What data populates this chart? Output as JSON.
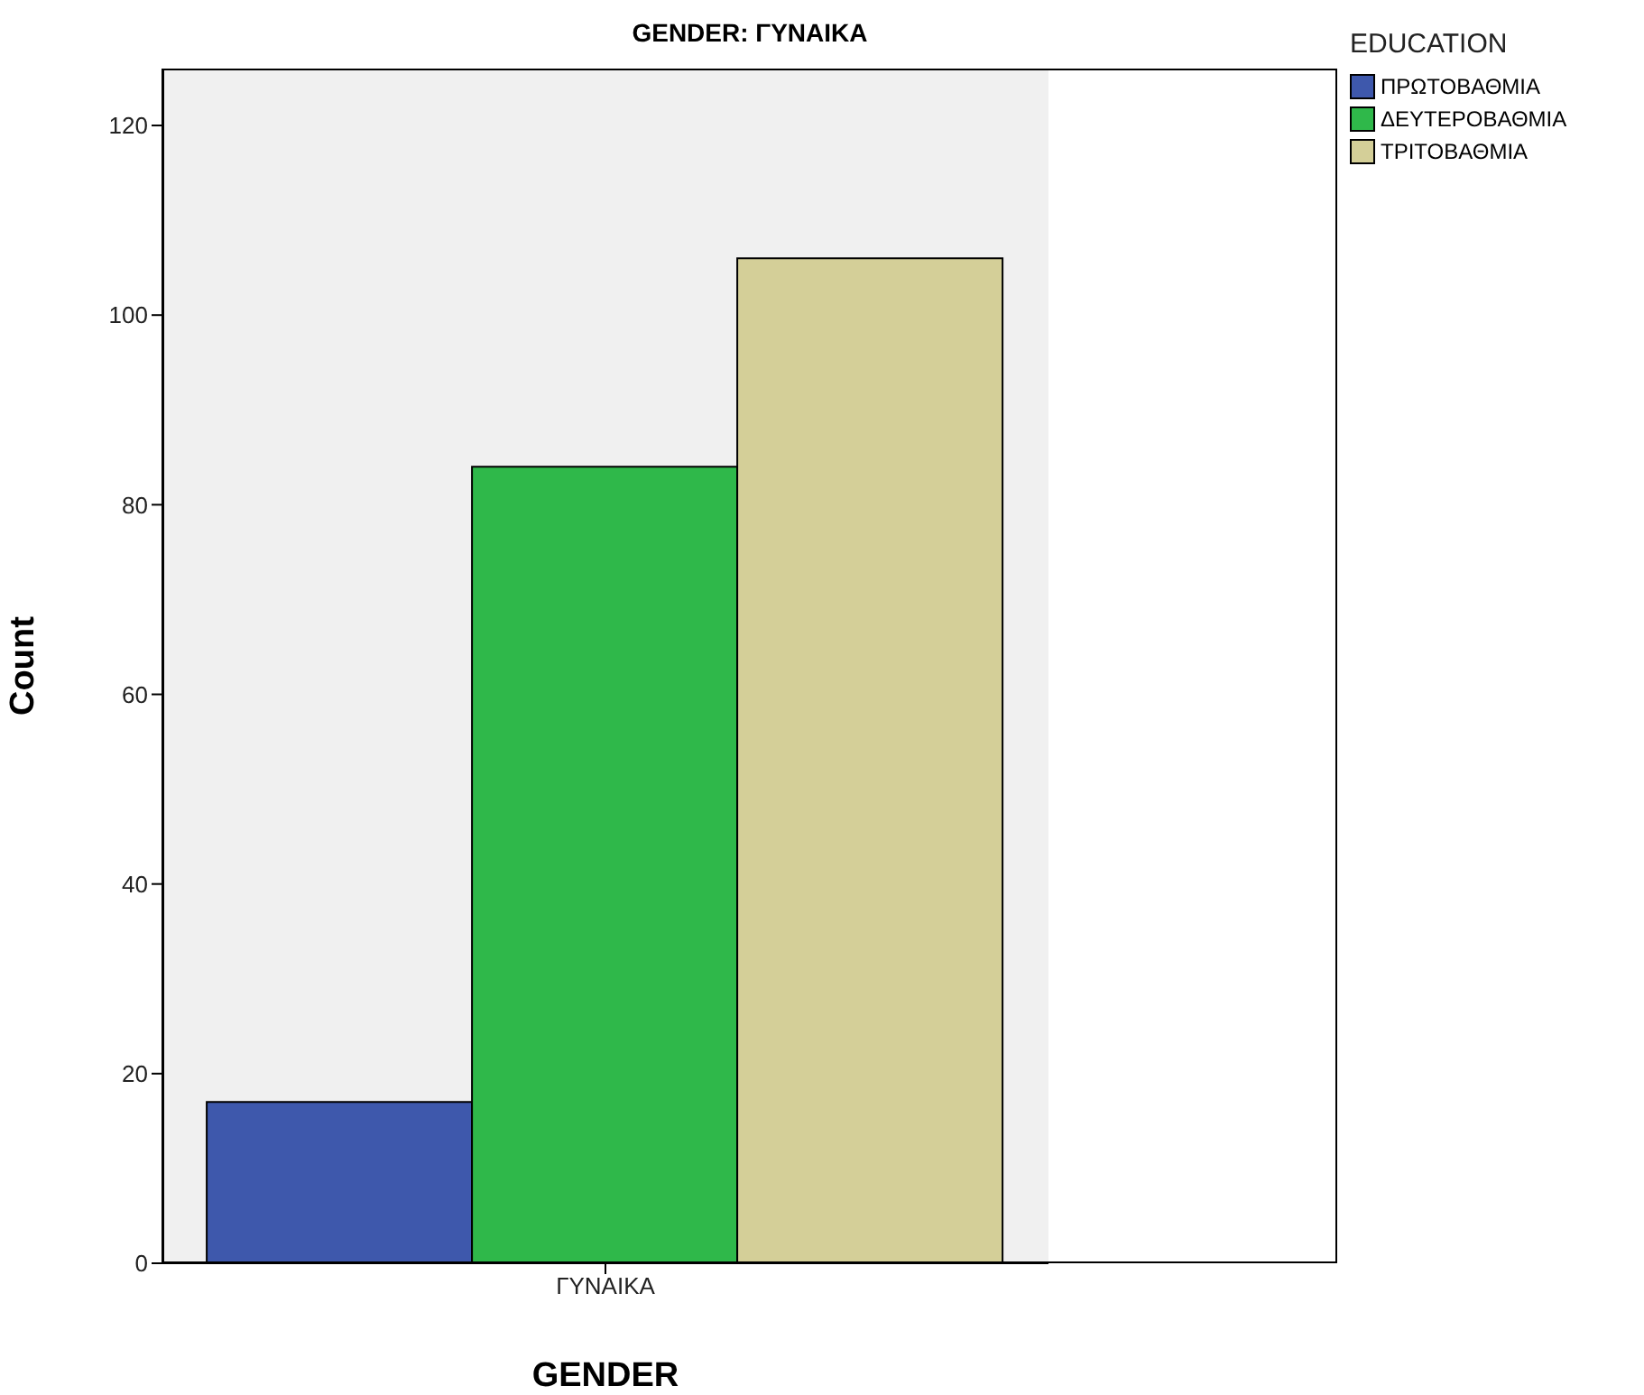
{
  "chart_data": {
    "type": "bar",
    "title": "GENDER: ΓΥΝΑΙΚΑ",
    "xlabel": "GENDER",
    "ylabel": "Count",
    "legend_title": "EDUCATION",
    "categories": [
      "ΓΥΝΑΙΚΑ"
    ],
    "series": [
      {
        "name": "ΠΡΩΤΟΒΑΘΜΙΑ",
        "color": "#3e58ac",
        "values": [
          17
        ]
      },
      {
        "name": "ΔΕΥΤΕΡΟΒΑΘΜΙΑ",
        "color": "#2fb84a",
        "values": [
          84
        ]
      },
      {
        "name": "ΤΡΙΤΟΒΑΘΜΙΑ",
        "color": "#d4cf98",
        "values": [
          106
        ]
      }
    ],
    "ylim": [
      0,
      126
    ],
    "yticks": [
      0,
      20,
      40,
      60,
      80,
      100,
      120
    ],
    "legend": "right",
    "grid": false
  }
}
